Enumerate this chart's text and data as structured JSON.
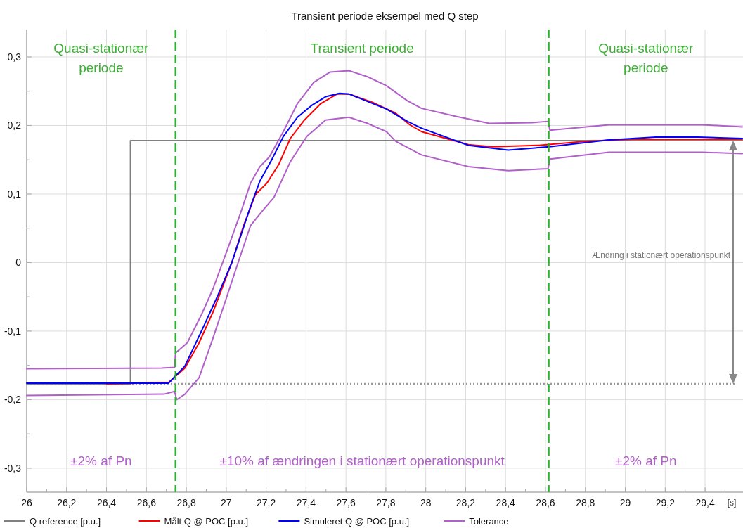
{
  "chart_data": {
    "type": "line",
    "title": "Transient periode eksempel med Q step",
    "xlabel": "[s]",
    "xlim": [
      26,
      29.59
    ],
    "ylim": [
      -0.335,
      0.34
    ],
    "xticks": [
      {
        "value": 26,
        "label": "26"
      },
      {
        "value": 26.1,
        "label": null
      },
      {
        "value": 26.2,
        "label": "26,2"
      },
      {
        "value": 26.3,
        "label": null
      },
      {
        "value": 26.4,
        "label": "26,4"
      },
      {
        "value": 26.5,
        "label": null
      },
      {
        "value": 26.6,
        "label": "26,6"
      },
      {
        "value": 26.7,
        "label": null
      },
      {
        "value": 26.8,
        "label": "26,8"
      },
      {
        "value": 26.9,
        "label": null
      },
      {
        "value": 27,
        "label": "27"
      },
      {
        "value": 27.1,
        "label": null
      },
      {
        "value": 27.2,
        "label": "27,2"
      },
      {
        "value": 27.3,
        "label": null
      },
      {
        "value": 27.4,
        "label": "27,4"
      },
      {
        "value": 27.5,
        "label": null
      },
      {
        "value": 27.6,
        "label": "27,6"
      },
      {
        "value": 27.7,
        "label": null
      },
      {
        "value": 27.8,
        "label": "27,8"
      },
      {
        "value": 27.9,
        "label": null
      },
      {
        "value": 28,
        "label": "28"
      },
      {
        "value": 28.1,
        "label": null
      },
      {
        "value": 28.2,
        "label": "28,2"
      },
      {
        "value": 28.3,
        "label": null
      },
      {
        "value": 28.4,
        "label": "28,4"
      },
      {
        "value": 28.5,
        "label": null
      },
      {
        "value": 28.6,
        "label": "28,6"
      },
      {
        "value": 28.7,
        "label": null
      },
      {
        "value": 28.8,
        "label": "28,8"
      },
      {
        "value": 28.9,
        "label": null
      },
      {
        "value": 29,
        "label": "29"
      },
      {
        "value": 29.1,
        "label": null
      },
      {
        "value": 29.2,
        "label": "29,2"
      },
      {
        "value": 29.3,
        "label": null
      },
      {
        "value": 29.4,
        "label": "29,4"
      },
      {
        "value": 29.5,
        "label": null
      }
    ],
    "yticks": [
      {
        "value": -0.3,
        "label": "-0,3"
      },
      {
        "value": -0.25,
        "label": null
      },
      {
        "value": -0.2,
        "label": "-0,2"
      },
      {
        "value": -0.15,
        "label": null
      },
      {
        "value": -0.1,
        "label": "-0,1"
      },
      {
        "value": -0.05,
        "label": null
      },
      0,
      {
        "value": 0.05,
        "label": null
      },
      {
        "value": 0.1,
        "label": "0,1"
      },
      {
        "value": 0.15,
        "label": null
      },
      {
        "value": 0.2,
        "label": "0,2"
      },
      {
        "value": 0.25,
        "label": null
      },
      {
        "value": 0.3,
        "label": "0,3"
      }
    ],
    "grid": true,
    "legend": "bottom",
    "line_style": "solid",
    "series": [
      {
        "name": "Q reference [p.u.]",
        "color": "#808080",
        "x": [
          26,
          26.52,
          26.52,
          29.59
        ],
        "values": [
          -0.177,
          -0.177,
          0.178,
          0.178
        ]
      },
      {
        "name": "Målt Q @ POC [p.u.]",
        "color": "#ff0000",
        "x": [
          26.4,
          26.711,
          26.793,
          26.864,
          26.934,
          27.028,
          27.087,
          27.146,
          27.204,
          27.263,
          27.321,
          27.392,
          27.474,
          27.556,
          27.615,
          27.732,
          27.849,
          27.92,
          27.979,
          28.214,
          28.331,
          28.566,
          28.8,
          29.035,
          29.387,
          29.587
        ],
        "values": [
          -0.177,
          -0.175,
          -0.154,
          -0.117,
          -0.072,
          0,
          0.054,
          0.099,
          0.116,
          0.143,
          0.181,
          0.208,
          0.232,
          0.246,
          0.246,
          0.234,
          0.218,
          0.201,
          0.191,
          0.172,
          0.169,
          0.171,
          0.177,
          0.18,
          0.18,
          0.18
        ]
      },
      {
        "name": "Simuleret Q @ POC [p.u.]",
        "color": "#0000ff",
        "x": [
          26,
          26.711,
          26.793,
          26.887,
          26.958,
          27.028,
          27.075,
          27.122,
          27.169,
          27.228,
          27.286,
          27.357,
          27.427,
          27.498,
          27.568,
          27.615,
          27.709,
          27.803,
          27.908,
          27.979,
          28.214,
          28.413,
          28.619,
          28.918,
          29.153,
          29.364,
          29.587
        ],
        "values": [
          -0.176,
          -0.176,
          -0.151,
          -0.093,
          -0.048,
          0,
          0.041,
          0.082,
          0.119,
          0.15,
          0.184,
          0.212,
          0.229,
          0.242,
          0.247,
          0.246,
          0.235,
          0.224,
          0.206,
          0.196,
          0.171,
          0.164,
          0.169,
          0.179,
          0.183,
          0.183,
          0.181
        ]
      },
      {
        "name": "Tolerance",
        "color": "#b060c8",
        "x": [
          26,
          26.676,
          26.741,
          26.746,
          26.805,
          26.876,
          26.934,
          27.016,
          27.075,
          27.122,
          27.169,
          27.216,
          27.286,
          27.357,
          27.439,
          27.521,
          27.615,
          27.709,
          27.803,
          27.908,
          27.979,
          28.155,
          28.319,
          28.53,
          28.613,
          28.622,
          28.918,
          29.387,
          29.587
        ],
        "values": [
          -0.155,
          -0.154,
          -0.153,
          -0.132,
          -0.117,
          -0.076,
          -0.038,
          0.027,
          0.075,
          0.116,
          0.14,
          0.154,
          0.191,
          0.232,
          0.263,
          0.278,
          0.28,
          0.271,
          0.258,
          0.236,
          0.225,
          0.213,
          0.203,
          0.204,
          0.206,
          0.193,
          0.201,
          0.201,
          0.198
        ]
      },
      {
        "color": "#b060c8",
        "x": [
          26,
          26.688,
          26.741,
          26.752,
          26.793,
          26.864,
          26.934,
          27.005,
          27.063,
          27.122,
          27.18,
          27.239,
          27.321,
          27.404,
          27.498,
          27.615,
          27.709,
          27.803,
          27.849,
          27.979,
          28.214,
          28.413,
          28.613,
          28.622,
          28.918,
          29.387,
          29.587
        ],
        "values": [
          -0.194,
          -0.192,
          -0.188,
          -0.2,
          -0.192,
          -0.168,
          -0.11,
          -0.048,
          0.003,
          0.054,
          0.075,
          0.095,
          0.147,
          0.184,
          0.208,
          0.212,
          0.203,
          0.191,
          0.177,
          0.157,
          0.14,
          0.134,
          0.137,
          0.151,
          0.161,
          0.161,
          0.159
        ]
      }
    ],
    "ref_lines": [
      {
        "axis": "x",
        "value": 26.746,
        "color": "#30b030",
        "line_style": "dashed"
      },
      {
        "axis": "x",
        "value": 28.616,
        "color": "#30b030",
        "line_style": "dashed"
      },
      {
        "axis": "y",
        "value": -0.177,
        "color": "#999999",
        "line_style": "dotted"
      }
    ],
    "annotations": [
      "Quasi-stationær periode",
      "Transient periode",
      "Quasi-stationær periode",
      "±2% af Pn",
      "±10% af ændringen i stationært operationspunkt",
      "±2% af Pn",
      "Ændring i stationært operationspunkt"
    ]
  }
}
